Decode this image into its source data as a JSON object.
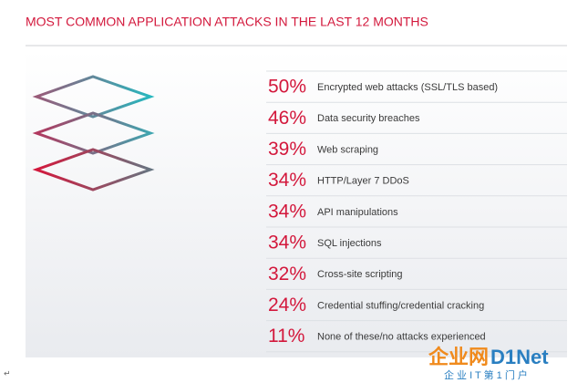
{
  "title": "MOST COMMON APPLICATION ATTACKS IN THE LAST 12 MONTHS",
  "items": [
    {
      "percent": "50%",
      "label": "Encrypted web attacks (SSL/TLS based)"
    },
    {
      "percent": "46%",
      "label": "Data security breaches"
    },
    {
      "percent": "39%",
      "label": "Web scraping"
    },
    {
      "percent": "34%",
      "label": "HTTP/Layer 7 DDoS"
    },
    {
      "percent": "34%",
      "label": "API manipulations"
    },
    {
      "percent": "34%",
      "label": "SQL injections"
    },
    {
      "percent": "32%",
      "label": "Cross-site scripting"
    },
    {
      "percent": "24%",
      "label": "Credential stuffing/credential cracking"
    },
    {
      "percent": "11%",
      "label": "None of these/no attacks experienced"
    }
  ],
  "watermark": {
    "brand_cn": "企业网",
    "brand_en": "D1Net",
    "slogan": "企 业 I T 第 1 门 户"
  },
  "paragraph_mark": "↵"
}
